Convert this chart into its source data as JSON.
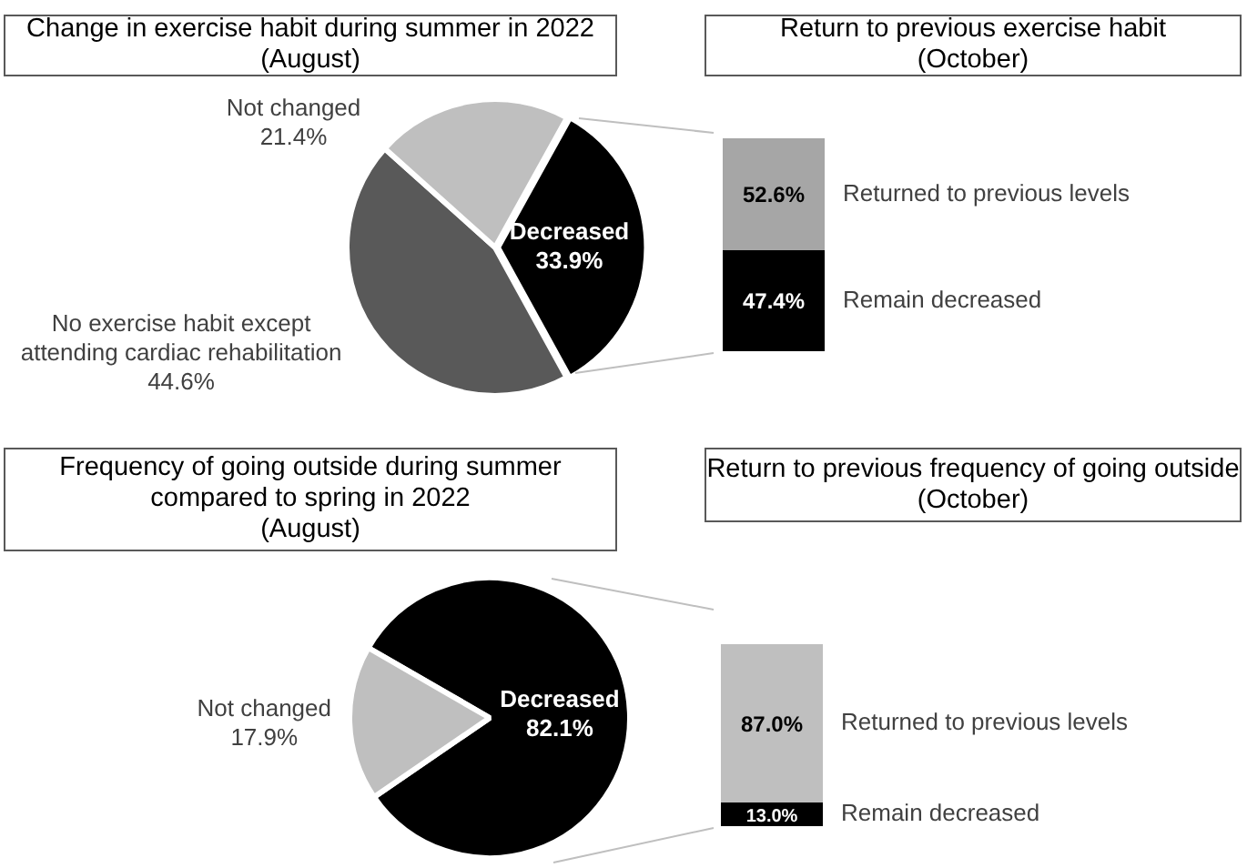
{
  "chart_data": [
    {
      "type": "pie",
      "title": "Change in exercise habit during summer in 2022\n(August)",
      "categories": [
        "Decreased",
        "No exercise habit except attending cardiac rehabilitation",
        "Not changed"
      ],
      "values": [
        33.9,
        44.6,
        21.4
      ],
      "colors": [
        "#000000",
        "#595959",
        "#bfbfbf"
      ],
      "value_labels": [
        "33.9%",
        "44.6%",
        "21.4%"
      ]
    },
    {
      "type": "bar",
      "stacked": true,
      "title": "Return to previous exercise habit\n(October)",
      "categories": [
        null
      ],
      "series": [
        {
          "name": "Remain decreased",
          "color": "#000000",
          "values": [
            47.4
          ],
          "value_labels": [
            "47.4%"
          ]
        },
        {
          "name": "Returned to previous levels",
          "color": "#a6a6a6",
          "values": [
            52.6
          ],
          "value_labels": [
            "52.6%"
          ]
        }
      ]
    },
    {
      "type": "pie",
      "title": "Frequency of going outside during summer\ncompared to spring in 2022\n(August)",
      "categories": [
        "Decreased",
        "Not changed"
      ],
      "values": [
        82.1,
        17.9
      ],
      "colors": [
        "#000000",
        "#bfbfbf"
      ],
      "value_labels": [
        "82.1%",
        "17.9%"
      ]
    },
    {
      "type": "bar",
      "stacked": true,
      "title": "Return to previous frequency of going outside\n(October)",
      "categories": [
        null
      ],
      "series": [
        {
          "name": "Remain decreased",
          "color": "#000000",
          "values": [
            13.0
          ],
          "value_labels": [
            "13.0%"
          ]
        },
        {
          "name": "Returned to previous levels",
          "color": "#bfbfbf",
          "values": [
            87.0
          ],
          "value_labels": [
            "87.0%"
          ]
        }
      ]
    }
  ]
}
